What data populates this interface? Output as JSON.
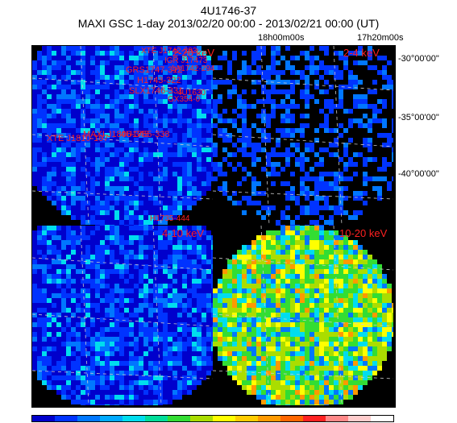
{
  "header": {
    "source_name": "4U1746-37",
    "subtitle": "MAXI GSC 1-day 2013/02/20 00:00 - 2013/02/21 00:00 (UT)"
  },
  "axes": {
    "ra_labels": [
      "18h00m00s",
      "17h20m00s"
    ],
    "dec_labels": [
      "-30°00'00\"",
      "-35°00'00\"",
      "-40°00'00\""
    ]
  },
  "panels": [
    {
      "band": "2-20 keV"
    },
    {
      "band": "2-4 keV"
    },
    {
      "band": "4-10 keV"
    },
    {
      "band": "10-20 keV"
    }
  ],
  "sources": [
    "XTE J1742-293",
    "IGR J17473",
    "1A1742-294",
    "GRS1747-312",
    "H1743-322",
    "SLX1746-331",
    "GX354-0",
    "4U1630",
    "4U1755-338",
    "MAXI J1806-345",
    "XTE J1810-197",
    "H1735-444"
  ],
  "colorbar": [
    "#0000cc",
    "#0033ff",
    "#0077ff",
    "#00aaff",
    "#00ddee",
    "#00dd99",
    "#33dd33",
    "#aadd00",
    "#ffff00",
    "#ffcc00",
    "#ff9900",
    "#ff6600",
    "#ff2222",
    "#ff8888",
    "#ffcccc",
    "#ffffff"
  ]
}
